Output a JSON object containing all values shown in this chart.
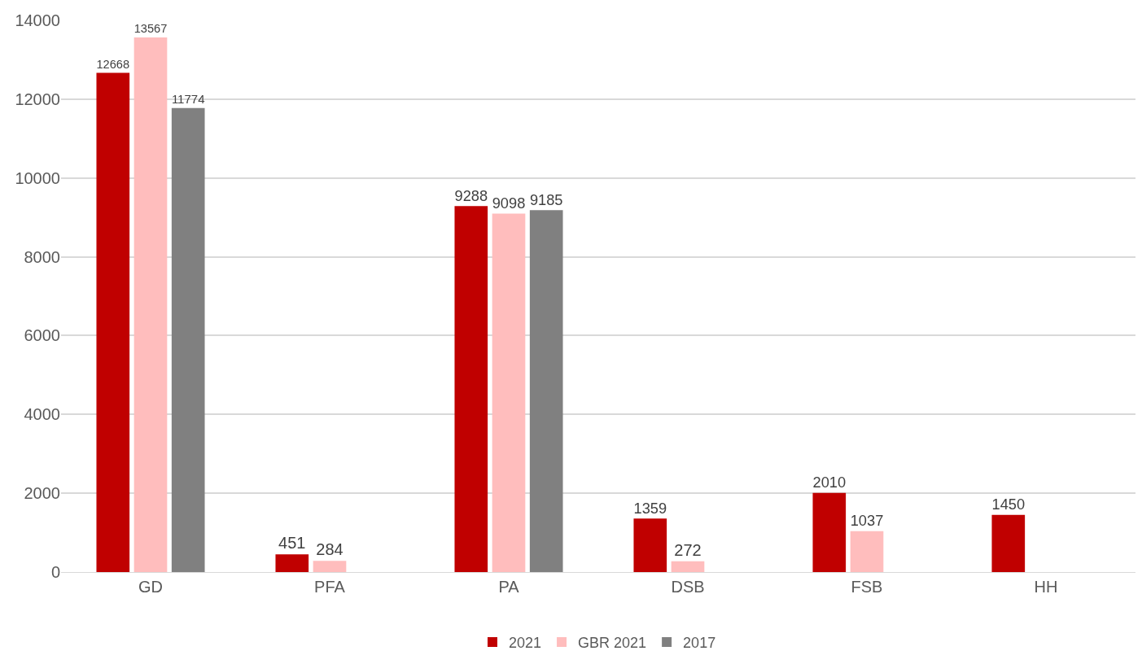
{
  "chart_data": {
    "type": "bar",
    "categories": [
      "GD",
      "PFA",
      "PA",
      "DSB",
      "FSB",
      "HH"
    ],
    "series": [
      {
        "name": "2021",
        "color": "#c00000",
        "values": [
          12668,
          451,
          9288,
          1359,
          2010,
          1450
        ]
      },
      {
        "name": "GBR 2021",
        "color": "#ffbdbd",
        "values": [
          13567,
          284,
          9098,
          272,
          1037,
          null
        ]
      },
      {
        "name": "2017",
        "color": "#808080",
        "values": [
          11774,
          null,
          9185,
          null,
          null,
          null
        ]
      }
    ],
    "ylim": [
      0,
      14000
    ],
    "yticks": [
      0,
      2000,
      4000,
      6000,
      8000,
      10000,
      12000,
      14000
    ],
    "grid": "y",
    "legend": "bottom",
    "data_labels": true
  }
}
